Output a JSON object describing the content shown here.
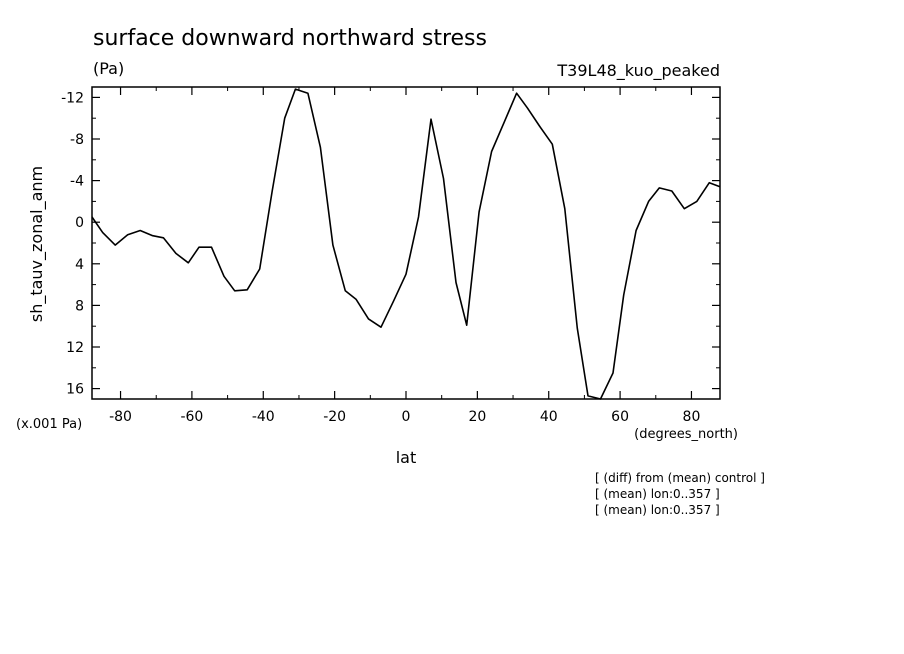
{
  "chart_data": {
    "type": "line",
    "title": "surface downward northward stress",
    "units": "(Pa)",
    "run_label": "T39L48_kuo_peaked",
    "ylabel": "sh_tauv_zonal_anm",
    "yscale_label": "(x.001 Pa)",
    "xlabel": "lat",
    "xunits": "(degrees_north)",
    "notes": [
      "[ (diff) from (mean) control ]",
      "[ (mean) lon:0..357 ]",
      "[ (mean) lon:0..357 ]"
    ],
    "xlim": [
      -88,
      88
    ],
    "ylim": [
      17,
      -13
    ],
    "y_inverted": true,
    "xticks": [
      -80,
      -60,
      -40,
      -20,
      0,
      20,
      40,
      60,
      80
    ],
    "xtick_labels": [
      "-80",
      "-60",
      "-40",
      "-20",
      "0",
      "20",
      "40",
      "60",
      "80"
    ],
    "yticks": [
      -12,
      -8,
      -4,
      0,
      4,
      8,
      12,
      16
    ],
    "ytick_labels": [
      "-12",
      "-8",
      "-4",
      "0",
      "4",
      "8",
      "12",
      "16"
    ],
    "series": [
      {
        "x": [
          -88,
          -85,
          -81.5,
          -78,
          -74.5,
          -71,
          -68,
          -64.5,
          -61,
          -58,
          -54.5,
          -51,
          -48,
          -44.5,
          -41,
          -37.5,
          -34,
          -31,
          -27.5,
          -24,
          -20.5,
          -17,
          -14,
          -10.5,
          -7,
          -3.5,
          0,
          3.5,
          7,
          10.5,
          14,
          17,
          20.5,
          24,
          27.5,
          31,
          34,
          37.5,
          41,
          44.5,
          48,
          51,
          54.5,
          58,
          61,
          64.5,
          68,
          71,
          74.5,
          78,
          81.5,
          85,
          88
        ],
        "y": [
          -0.5,
          1.0,
          2.2,
          1.2,
          0.8,
          1.3,
          1.5,
          3.0,
          3.9,
          2.4,
          2.4,
          5.2,
          6.6,
          6.5,
          4.5,
          -3.0,
          -10.0,
          -12.8,
          -12.4,
          -7.2,
          2.2,
          6.6,
          7.4,
          9.3,
          10.1,
          7.6,
          5.0,
          -0.5,
          -9.9,
          -4.2,
          5.8,
          9.9,
          -1.0,
          -6.8,
          -9.6,
          -12.4,
          -11.0,
          -9.2,
          -7.5,
          -1.3,
          10.2,
          16.7,
          17.1,
          14.5,
          7.0,
          0.8,
          -2.0,
          -3.3,
          -3.0,
          -1.3,
          -2.0,
          -3.8,
          -3.4
        ]
      }
    ],
    "grid": false,
    "legend": "none",
    "colors": {
      "line": "#000000",
      "axis": "#000000",
      "background": "#ffffff"
    }
  }
}
